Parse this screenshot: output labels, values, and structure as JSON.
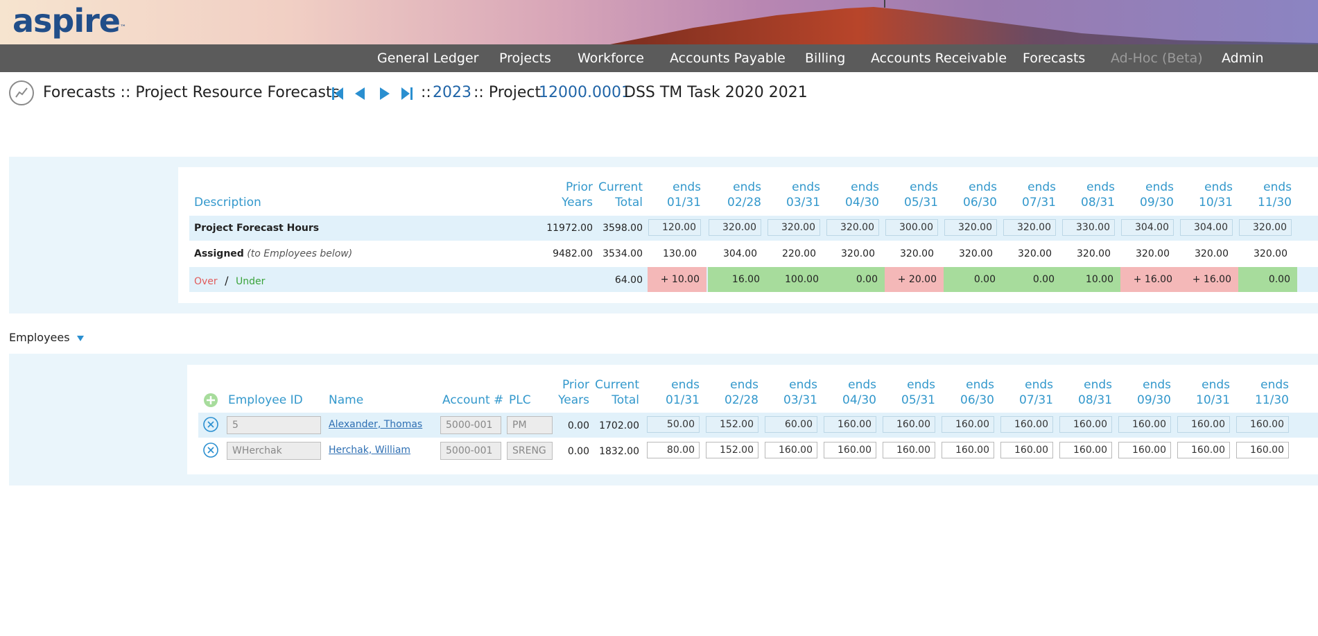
{
  "app": {
    "logo_text": "aspire",
    "logo_tm": "™"
  },
  "nav": [
    {
      "label": "General Ledger",
      "enabled": true
    },
    {
      "label": "Projects",
      "enabled": true
    },
    {
      "label": "Workforce",
      "enabled": true
    },
    {
      "label": "Accounts Payable",
      "enabled": true
    },
    {
      "label": "Billing",
      "enabled": true
    },
    {
      "label": "Accounts Receivable",
      "enabled": true
    },
    {
      "label": "Forecasts",
      "enabled": true
    },
    {
      "label": "Ad-Hoc (Beta)",
      "enabled": false
    },
    {
      "label": "Admin",
      "enabled": true
    }
  ],
  "title": {
    "text": "Forecasts :: Project Resource Forecasts",
    "sep1": "::",
    "year": "2023",
    "sep2": ":: Project",
    "project_id": "12000.0001",
    "project_name": "DSS TM Task 2020 2021"
  },
  "summary": {
    "headers": {
      "description": "Description",
      "prior": [
        "Prior",
        "Years"
      ],
      "current": [
        "Current",
        "Total"
      ],
      "months": [
        [
          "ends",
          "01/31"
        ],
        [
          "ends",
          "02/28"
        ],
        [
          "ends",
          "03/31"
        ],
        [
          "ends",
          "04/30"
        ],
        [
          "ends",
          "05/31"
        ],
        [
          "ends",
          "06/30"
        ],
        [
          "ends",
          "07/31"
        ],
        [
          "ends",
          "08/31"
        ],
        [
          "ends",
          "09/30"
        ],
        [
          "ends",
          "10/31"
        ],
        [
          "ends",
          "11/30"
        ]
      ]
    },
    "forecast_row": {
      "label": "Project Forecast Hours",
      "prior": "11972.00",
      "current": "3598.00",
      "months": [
        "120.00",
        "320.00",
        "320.00",
        "320.00",
        "300.00",
        "320.00",
        "320.00",
        "330.00",
        "304.00",
        "304.00",
        "320.00"
      ]
    },
    "assigned_row": {
      "label": "Assigned",
      "note": "(to Employees below)",
      "prior": "9482.00",
      "current": "3534.00",
      "months": [
        "130.00",
        "304.00",
        "220.00",
        "320.00",
        "320.00",
        "320.00",
        "320.00",
        "320.00",
        "320.00",
        "320.00",
        "320.00"
      ]
    },
    "diff_row": {
      "over_label": "Over",
      "slash": "/",
      "under_label": "Under",
      "current": "64.00",
      "months": [
        {
          "value": "+ 10.00",
          "status": "over"
        },
        {
          "value": "16.00",
          "status": "under"
        },
        {
          "value": "100.00",
          "status": "under"
        },
        {
          "value": "0.00",
          "status": "under"
        },
        {
          "value": "+ 20.00",
          "status": "over"
        },
        {
          "value": "0.00",
          "status": "under"
        },
        {
          "value": "0.00",
          "status": "under"
        },
        {
          "value": "10.00",
          "status": "under"
        },
        {
          "value": "+ 16.00",
          "status": "over"
        },
        {
          "value": "+ 16.00",
          "status": "over"
        },
        {
          "value": "0.00",
          "status": "under"
        }
      ]
    }
  },
  "employees": {
    "section_label": "Employees",
    "headers": {
      "employee_id": "Employee ID",
      "name": "Name",
      "account": "Account #",
      "plc": "PLC",
      "prior": [
        "Prior",
        "Years"
      ],
      "current": [
        "Current",
        "Total"
      ],
      "months": [
        [
          "ends",
          "01/31"
        ],
        [
          "ends",
          "02/28"
        ],
        [
          "ends",
          "03/31"
        ],
        [
          "ends",
          "04/30"
        ],
        [
          "ends",
          "05/31"
        ],
        [
          "ends",
          "06/30"
        ],
        [
          "ends",
          "07/31"
        ],
        [
          "ends",
          "08/31"
        ],
        [
          "ends",
          "09/30"
        ],
        [
          "ends",
          "10/31"
        ],
        [
          "ends",
          "11/30"
        ]
      ]
    },
    "rows": [
      {
        "employee_id": "5",
        "name": "Alexander, Thomas",
        "account": "5000-001",
        "plc": "PM",
        "prior": "0.00",
        "current": "1702.00",
        "months": [
          "50.00",
          "152.00",
          "60.00",
          "160.00",
          "160.00",
          "160.00",
          "160.00",
          "160.00",
          "160.00",
          "160.00",
          "160.00"
        ]
      },
      {
        "employee_id": "WHerchak",
        "name": "Herchak, William",
        "account": "5000-001",
        "plc": "SRENG",
        "prior": "0.00",
        "current": "1832.00",
        "months": [
          "80.00",
          "152.00",
          "160.00",
          "160.00",
          "160.00",
          "160.00",
          "160.00",
          "160.00",
          "160.00",
          "160.00",
          "160.00"
        ]
      }
    ]
  },
  "colors": {
    "accent": "#3398cc",
    "link": "#1f64a7",
    "nav_bg": "#5b5b5b",
    "over": "#f4b8b8",
    "under": "#a7dc9c",
    "band": "#e1f1fa"
  }
}
